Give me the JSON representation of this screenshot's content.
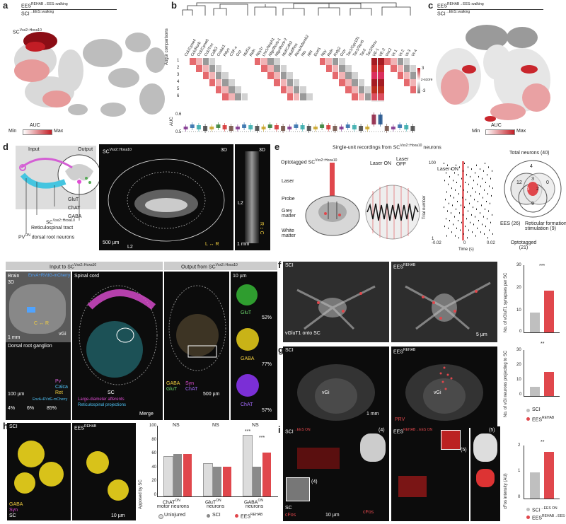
{
  "panel_a": {
    "label": "a",
    "title_top": "EES",
    "title_top_sup": "REHAB→EES::walking",
    "title_bottom": "SCI",
    "title_bottom_sup": "→EES::walking",
    "cluster_label": "SC",
    "cluster_sup": "Vsx2::Hoxa10",
    "legend_title": "AUC",
    "legend_min": "Min",
    "legend_max": "Max"
  },
  "panel_b": {
    "label": "b",
    "genes": [
      "Cck/Cpne4",
      "Cck/Rorb",
      "Cck/Cpne8",
      "Cck/Tnn",
      "Calb3",
      "Crabp1",
      "Pdyn",
      "CSF-c",
      "Grp",
      "Maf1a",
      "Reln",
      "Npy1r",
      "Lhx1/Nxph1",
      "Nfgr/Rorb-1",
      "Nfgr/Rorb-2",
      "Maf/Cdh3",
      "Maf/Ros",
      "Rora/Adamb2",
      "Nts",
      "MN",
      "Ecel1",
      "Npy",
      "Reln",
      "Rxfp2",
      "Grpr",
      "Tac1/Gpr101",
      "Tac1/Sox5",
      "Tac2",
      "Tac2/Nmu",
      "VE-1",
      "VE-2",
      "Vsx2",
      "Vt-1",
      "Vt-2",
      "Vt-3",
      "Vt-4"
    ],
    "ylab_heat": "Augur comparisons",
    "rows": [
      "1",
      "2",
      "3",
      "4",
      "5",
      "6"
    ],
    "zscore": "z-score",
    "ymax": "3",
    "ymin": "-3",
    "ylab_auc": "AUC",
    "auc_ticks": [
      "0.6",
      "0.5"
    ]
  },
  "panel_c": {
    "label": "c",
    "title_top": "EES",
    "title_top_sup": "REHAB→EES::walking",
    "title_bottom": "SCI",
    "title_bottom_sup": "→EES::walking",
    "legend_title": "AUC",
    "legend_min": "Min",
    "legend_max": "Max"
  },
  "panel_d": {
    "label": "d",
    "input": "Input",
    "output": "Output",
    "glut": "GluT",
    "chat": "ChAT",
    "gaba": "GABA",
    "sc": "SC",
    "sc_sup": "Vsx2::Hoxa10",
    "reticulo": "Reticulospinal tract",
    "pv": "PV",
    "pv_sup": "ON",
    "pv_rest": "dorsal root neurons",
    "img_title": "SC",
    "img_sup": "Vsx2::Hoxa10",
    "three_d": "3D",
    "scale1": "500 µm",
    "l2": "L2",
    "lr": "L ↔ R",
    "scale2": "1 mm",
    "l2b": "L2",
    "rc": "R ↕ C"
  },
  "panel_e": {
    "label": "e",
    "title": "Single-unit recordings from SC",
    "title_sup": "Vsx2::Hoxa10",
    "title_end": "neurons",
    "opto": "Optotagged SC",
    "opto_sup": "Vsx2::Hoxa10",
    "laser_on": "Laser ON",
    "laser_off": "Laser OFF",
    "laser": "Laser",
    "probe": "Probe",
    "grey": "Grey matter",
    "white": "White matter",
    "trial": "Trial number",
    "time": "Time (s)",
    "xt": [
      "-0.02",
      "0",
      "0.02"
    ],
    "yt": [
      "1",
      "100"
    ],
    "laser_on2": "Laser ON",
    "total": "Total neurons (40)",
    "venn": [
      "4",
      "12",
      "3",
      "0",
      "5",
      "2",
      "9"
    ],
    "ees": "EES (26)",
    "retic": "Reticular formation stimulation (9)",
    "optot": "Optotagged (21)"
  },
  "panel_mid": {
    "input_title": "Input to SC",
    "input_sup": "Vsx2::Hoxa10",
    "brain": "Brain",
    "brain3d": "3D",
    "envA": "EnvA+RVdG-mCherry",
    "cr": "C ↔ R",
    "vgi": "vGi",
    "mm1": "1 mm",
    "spinal": "Spinal cord",
    "drg": "Dorsal root ganglion",
    "pv": "Pv",
    "calca": "Calca",
    "ret": "Ret",
    "envA2": "EnvA+RVdG-mCherry",
    "um100": "100 µm",
    "large": "Large-diameter afferents",
    "retic": "Reticulospinal projections",
    "sc_small": "SC",
    "pcts": [
      "4%",
      "6%",
      "85%"
    ],
    "merge": "Merge",
    "output_title": "Output from SC",
    "output_sup": "Vsx2::Hoxa10",
    "gaba": "GABA",
    "syn": "Syn",
    "glut": "GluT",
    "chat": "ChAT",
    "um500": "500 µm",
    "um10": "10 µm",
    "glut_pct": "52%",
    "gaba_pct": "77%",
    "chat_pct": "57%"
  },
  "panel_f": {
    "label": "f",
    "sci": "SCI",
    "ees": "EES",
    "ees_sup": "REHAB",
    "caption": "vGluT1 onto SC",
    "um5": "5 µm",
    "ylab": "No. of vGluT1 synapses per SC",
    "sig": "***",
    "yt": [
      "30",
      "20",
      "10",
      "0"
    ]
  },
  "panel_g": {
    "label": "g",
    "sci": "SCI",
    "ees": "EES",
    "ees_sup": "REHAB",
    "vgi": "vGi",
    "vgi2": "vGi",
    "prv": "PRV",
    "mm1": "1 mm",
    "ylab": "No. of vGi neurons projecting to SC",
    "sig": "**",
    "yt": [
      "30",
      "20",
      "10",
      "0"
    ],
    "leg_sci": "SCI",
    "leg_ees": "EES"
  },
  "panel_h": {
    "label": "h",
    "sci": "SCI",
    "ees": "EES",
    "ees_sup": "REHAB",
    "gaba": "GABA",
    "syn": "Syn",
    "sc": "SC",
    "um10": "10 µm",
    "ylab": "Apposed by SC",
    "yt": [
      "100",
      "80",
      "60",
      "40",
      "20",
      "0"
    ],
    "groups": [
      "ChAT",
      "GluT",
      "GABA"
    ],
    "groups_sup": "ON",
    "groups_sub": [
      "motor neurons",
      "neurons",
      "neurons"
    ],
    "ns": [
      "NS",
      "NS",
      "NS"
    ],
    "sig": [
      "***",
      "***"
    ],
    "leg": [
      "Uninjured",
      "SCI",
      "EES"
    ]
  },
  "panel_i": {
    "label": "i",
    "sci": "SCI",
    "sci_sup": "→EES ON",
    "ees": "EES",
    "ees_sup": "REHAB→EES ON",
    "n4": "(4)",
    "n5": "(5)",
    "cfos": "cFos",
    "sc": "SC",
    "um10": "10 µm",
    "ylab": "cFos intensity (AU)",
    "sig": "**",
    "yt": [
      "2",
      "1",
      "0"
    ],
    "leg_sci": "SCI",
    "leg_ees": "EES"
  },
  "colors": {
    "red": "#e0474c",
    "gray": "#a7a7a7",
    "dark": "#0c0c0c"
  }
}
